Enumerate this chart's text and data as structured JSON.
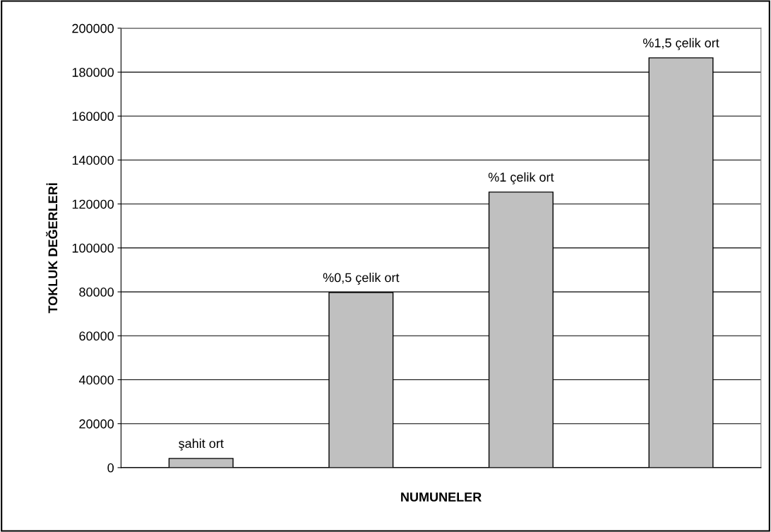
{
  "chart_data": {
    "type": "bar",
    "xlabel": "NUMUNELER",
    "ylabel": "TOKLUK DEĞERLERİ",
    "categories": [
      "şahit ort",
      "%0,5 çelik ort",
      "%1 çelik ort",
      "%1,5 çelik ort"
    ],
    "values": [
      4200,
      79700,
      125400,
      186500
    ],
    "color": "#c0c0c0",
    "ylim": [
      0,
      200000
    ],
    "yticks": [
      0,
      20000,
      40000,
      60000,
      80000,
      100000,
      120000,
      140000,
      160000,
      180000,
      200000
    ],
    "grid": "y",
    "tick_labels": "y",
    "legend": false
  }
}
